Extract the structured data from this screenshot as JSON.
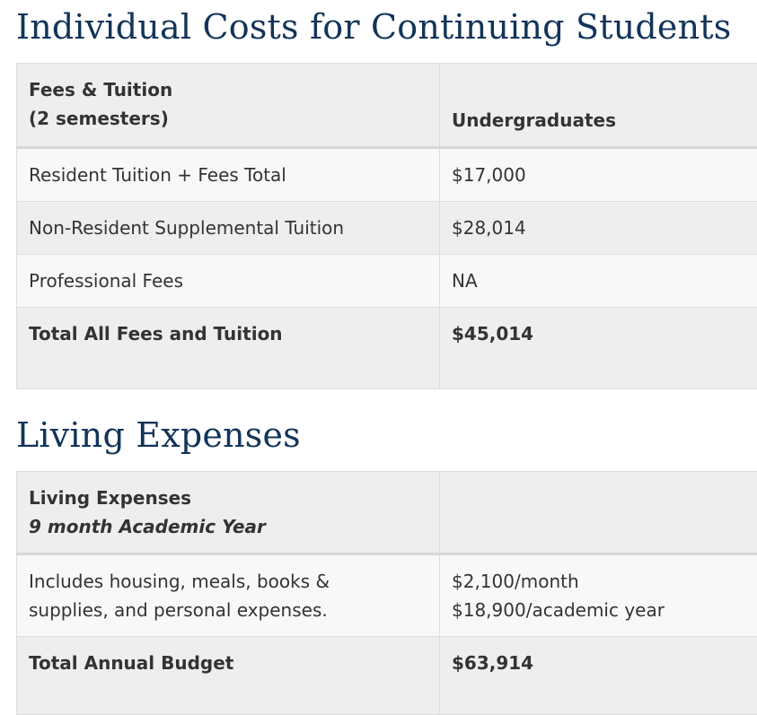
{
  "tuition_section": {
    "title": "Individual Costs for Continuing Students",
    "header": {
      "col1_line1": "Fees & Tuition",
      "col1_line2": "(2 semesters)",
      "col2": "Undergraduates"
    },
    "rows": [
      {
        "label": "Resident Tuition + Fees Total",
        "value": "$17,000"
      },
      {
        "label": "Non-Resident Supplemental Tuition",
        "value": "$28,014"
      },
      {
        "label": "Professional Fees",
        "value": "NA"
      }
    ],
    "total": {
      "label": "Total All Fees and Tuition",
      "value": "$45,014"
    }
  },
  "living_section": {
    "title": "Living Expenses",
    "header": {
      "col1_line1": "Living Expenses",
      "col1_line2": "9 month Academic Year",
      "col2": ""
    },
    "row": {
      "label_line1": "Includes housing, meals, books &",
      "label_line2": "supplies, and personal expenses.",
      "value_line1": "$2,100/month",
      "value_line2": "$18,900/academic year"
    },
    "total": {
      "label": "Total Annual Budget",
      "value": "$63,914"
    }
  },
  "colors": {
    "heading": "#12345a",
    "text": "#333333",
    "header_bg": "#eeeeee",
    "row_light_bg": "#f8f8f8",
    "border": "#dddddd"
  }
}
